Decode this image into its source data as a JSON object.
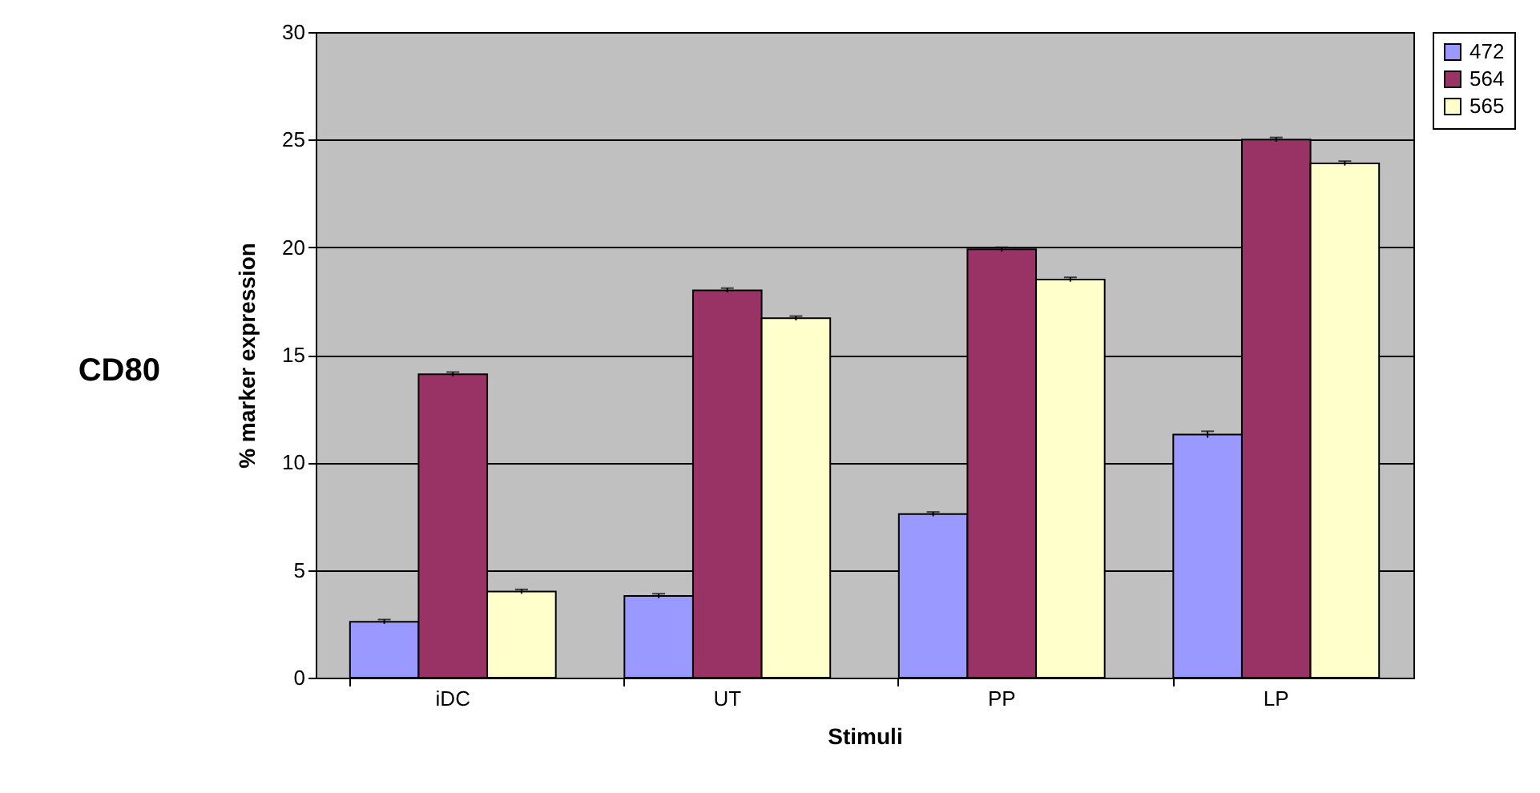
{
  "chart_data": {
    "type": "bar",
    "title": "CD80",
    "xlabel": "Stimuli",
    "ylabel": "% marker expression",
    "categories": [
      "iDC",
      "UT",
      "PP",
      "LP"
    ],
    "series": [
      {
        "name": "472",
        "color": "#9999ff",
        "values": [
          2.6,
          3.8,
          7.6,
          11.3
        ],
        "errors": [
          0.1,
          0.1,
          0.1,
          0.15
        ]
      },
      {
        "name": "564",
        "color": "#993366",
        "values": [
          14.1,
          18.0,
          19.9,
          25.0
        ],
        "errors": [
          0.1,
          0.1,
          0.1,
          0.1
        ]
      },
      {
        "name": "565",
        "color": "#ffffcc",
        "values": [
          4.0,
          16.7,
          18.5,
          23.9
        ],
        "errors": [
          0.1,
          0.1,
          0.1,
          0.1
        ]
      }
    ],
    "ylim": [
      0,
      30
    ],
    "yticks": [
      0,
      5,
      10,
      15,
      20,
      25,
      30
    ],
    "grid": "y",
    "legend": "right"
  }
}
